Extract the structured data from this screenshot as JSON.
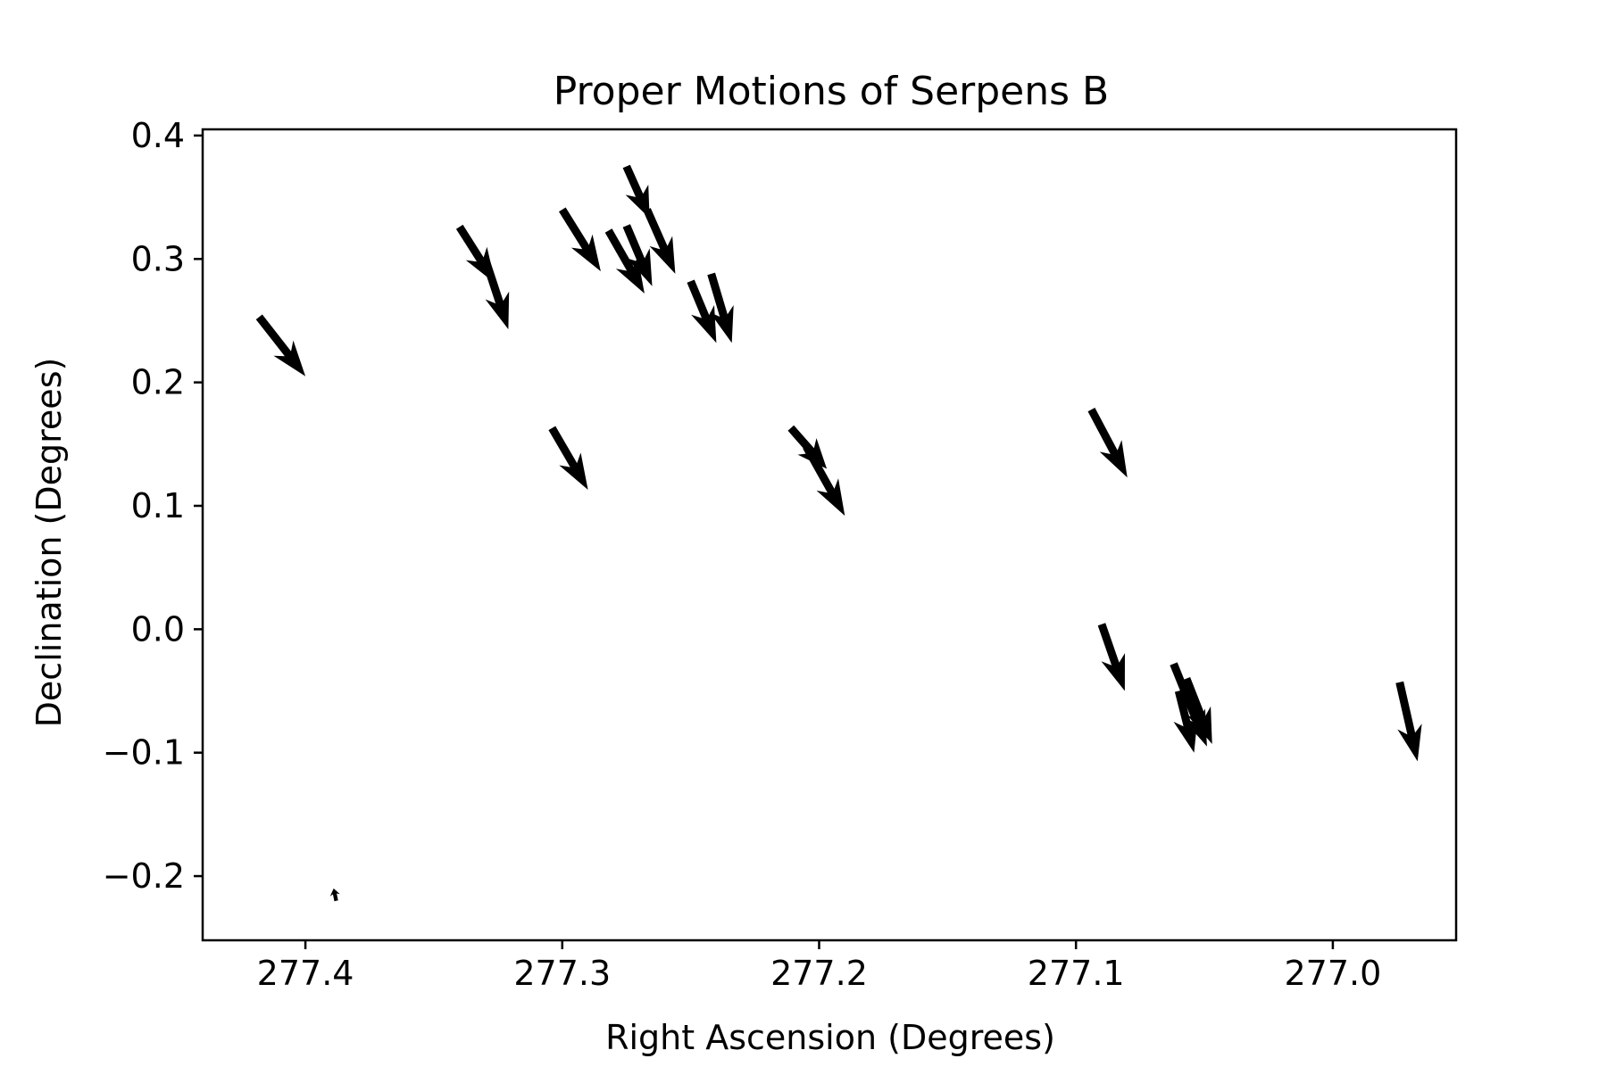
{
  "chart_data": {
    "type": "quiver",
    "title": "Proper Motions of Serpens B",
    "xlabel": "Right Ascension (Degrees)",
    "ylabel": "Declination (Degrees)",
    "xlim": [
      277.44,
      276.952
    ],
    "ylim": [
      -0.252,
      0.405
    ],
    "x_inverted": true,
    "grid": false,
    "xticks": [
      277.4,
      277.3,
      277.2,
      277.1,
      277.0
    ],
    "xtick_labels": [
      "277.4",
      "277.3",
      "277.2",
      "277.1",
      "277.0"
    ],
    "yticks": [
      0.4,
      0.3,
      0.2,
      0.1,
      0.0,
      -0.1,
      -0.2
    ],
    "ytick_labels": [
      "0.4",
      "0.3",
      "0.2",
      "0.1",
      "0.0",
      "−0.1",
      "−0.2"
    ],
    "arrow_color": "#000000",
    "arrows": [
      {
        "ra": 277.418,
        "dec": 0.253,
        "tip_ra": 277.4,
        "tip_dec": 0.205
      },
      {
        "ra": 277.34,
        "dec": 0.326,
        "tip_ra": 277.326,
        "tip_dec": 0.28
      },
      {
        "ra": 277.33,
        "dec": 0.3,
        "tip_ra": 277.321,
        "tip_dec": 0.243
      },
      {
        "ra": 277.3,
        "dec": 0.34,
        "tip_ra": 277.285,
        "tip_dec": 0.29
      },
      {
        "ra": 277.282,
        "dec": 0.323,
        "tip_ra": 277.268,
        "tip_dec": 0.272
      },
      {
        "ra": 277.275,
        "dec": 0.327,
        "tip_ra": 277.265,
        "tip_dec": 0.278
      },
      {
        "ra": 277.275,
        "dec": 0.375,
        "tip_ra": 277.266,
        "tip_dec": 0.333
      },
      {
        "ra": 277.267,
        "dec": 0.34,
        "tip_ra": 277.256,
        "tip_dec": 0.288
      },
      {
        "ra": 277.25,
        "dec": 0.282,
        "tip_ra": 277.24,
        "tip_dec": 0.232
      },
      {
        "ra": 277.242,
        "dec": 0.288,
        "tip_ra": 277.234,
        "tip_dec": 0.232
      },
      {
        "ra": 277.304,
        "dec": 0.163,
        "tip_ra": 277.29,
        "tip_dec": 0.113
      },
      {
        "ra": 277.211,
        "dec": 0.163,
        "tip_ra": 277.197,
        "tip_dec": 0.13
      },
      {
        "ra": 277.205,
        "dec": 0.148,
        "tip_ra": 277.19,
        "tip_dec": 0.092
      },
      {
        "ra": 277.094,
        "dec": 0.178,
        "tip_ra": 277.08,
        "tip_dec": 0.123
      },
      {
        "ra": 277.09,
        "dec": 0.004,
        "tip_ra": 277.081,
        "tip_dec": -0.05
      },
      {
        "ra": 277.062,
        "dec": -0.028,
        "tip_ra": 277.049,
        "tip_dec": -0.095
      },
      {
        "ra": 277.057,
        "dec": -0.04,
        "tip_ra": 277.047,
        "tip_dec": -0.093
      },
      {
        "ra": 277.06,
        "dec": -0.05,
        "tip_ra": 277.054,
        "tip_dec": -0.1
      },
      {
        "ra": 276.974,
        "dec": -0.043,
        "tip_ra": 276.967,
        "tip_dec": -0.107
      },
      {
        "ra": 277.388,
        "dec": -0.22,
        "tip_ra": 277.389,
        "tip_dec": -0.21
      }
    ]
  }
}
